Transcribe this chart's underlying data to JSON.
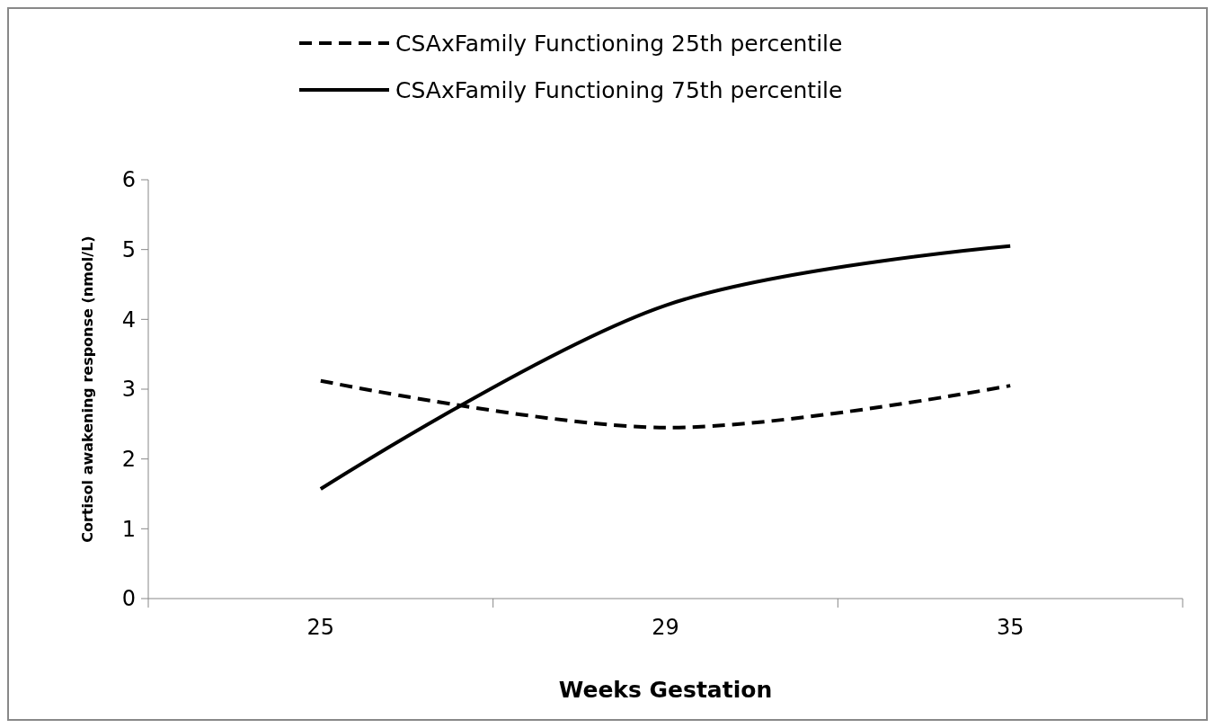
{
  "chart_data": {
    "type": "line",
    "xlabel": "Weeks Gestation",
    "ylabel": "Cortisol awakening response (nmol/L)",
    "categories": [
      "25",
      "29",
      "35"
    ],
    "series": [
      {
        "name": "CSAxFamily Functioning 25th percentile",
        "color": "#000000",
        "line_style": "dashed",
        "values": [
          3.12,
          2.45,
          3.05
        ]
      },
      {
        "name": "CSAxFamily Functioning 75th percentile",
        "color": "#000000",
        "line_style": "solid",
        "values": [
          1.57,
          4.2,
          5.05
        ]
      }
    ],
    "ylim": [
      0,
      6
    ],
    "yticks": [
      0,
      1,
      2,
      3,
      4,
      5,
      6
    ],
    "legend": "top",
    "marker": "none"
  }
}
